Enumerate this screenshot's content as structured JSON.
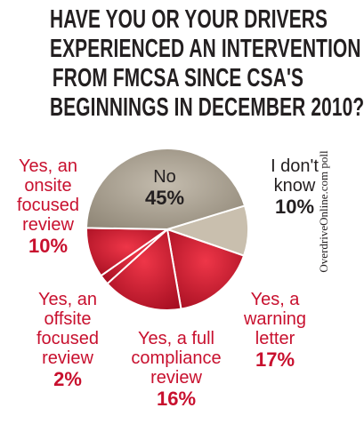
{
  "title_lines": [
    "HAVE YOU OR YOUR DRIVERS",
    "EXPERIENCED AN INTERVENTION",
    "FROM FMCSA SINCE CSA'S",
    "BEGINNINGS IN DECEMBER 2010?"
  ],
  "credit": "OverdriveOnline.com poll",
  "colors": {
    "no": "#aaa090",
    "dont_know": "#c9bfae",
    "yes": "#d2152d",
    "edge": "#ffffff"
  },
  "chart_data": {
    "type": "pie",
    "title": "HAVE YOU OR YOUR DRIVERS EXPERIENCED AN INTERVENTION FROM FMCSA SINCE CSA'S BEGINNINGS IN DECEMBER 2010?",
    "slices": [
      {
        "label": "I don't know",
        "value": 10,
        "value_label": "10%"
      },
      {
        "label": "Yes, a warning letter",
        "value": 17,
        "value_label": "17%"
      },
      {
        "label": "Yes, a full compliance review",
        "value": 16,
        "value_label": "16%"
      },
      {
        "label": "Yes, an offsite focused review",
        "value": 2,
        "value_label": "2%"
      },
      {
        "label": "Yes, an onsite focused review",
        "value": 10,
        "value_label": "10%"
      },
      {
        "label": "No",
        "value": 45,
        "value_label": "45%"
      }
    ]
  }
}
